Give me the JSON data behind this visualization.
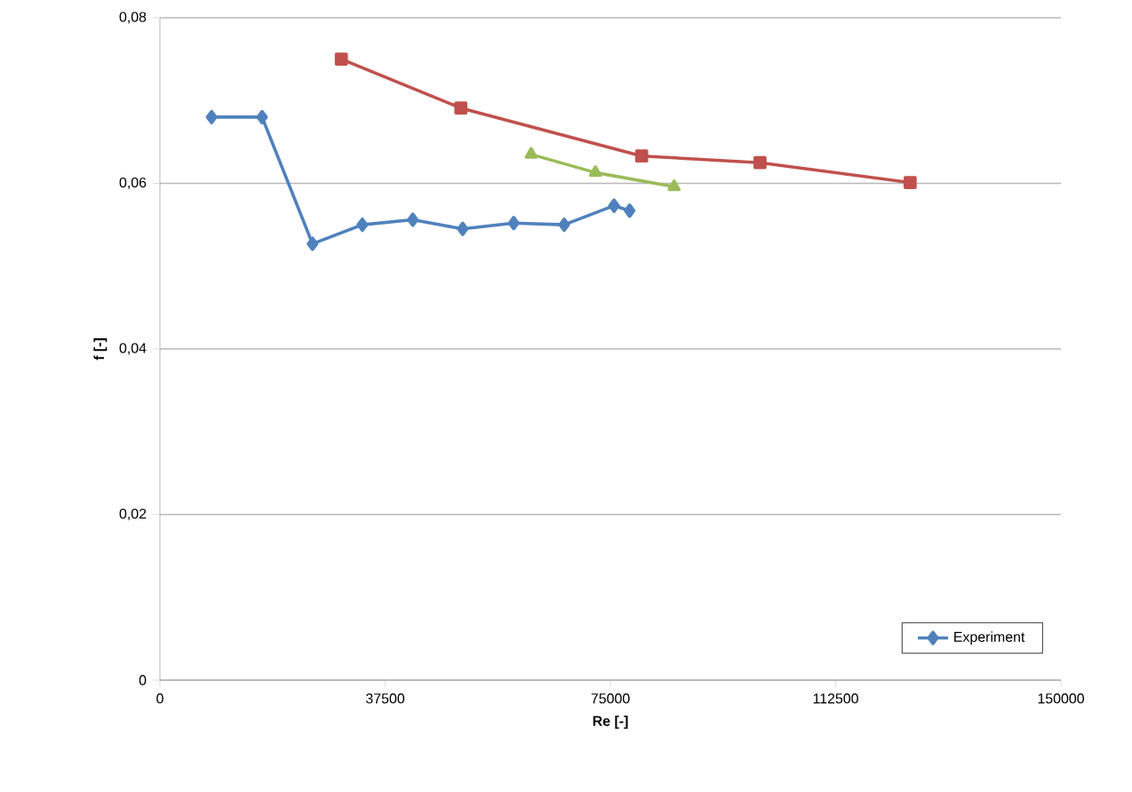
{
  "chart_data": {
    "type": "line",
    "xlabel": "Re [-]",
    "ylabel": "f [-]",
    "xlim": [
      0,
      150000
    ],
    "ylim": [
      0,
      0.08
    ],
    "xticks": [
      0,
      37500,
      75000,
      112500,
      150000
    ],
    "yticks": [
      0,
      {
        "value": 0.02,
        "label": "0,02"
      },
      {
        "value": 0.04,
        "label": "0,04"
      },
      {
        "value": 0.06,
        "label": "0,06"
      },
      {
        "value": 0.08,
        "label": "0,08"
      }
    ],
    "grid": "y",
    "legend": "bottom right",
    "series": [
      {
        "name": "Experiment",
        "color": "#4f81bd",
        "marker": "diamond",
        "x": [
          8600,
          17000,
          25400,
          33700,
          42100,
          50400,
          58900,
          67300,
          75600,
          78200
        ],
        "values": [
          0.068,
          0.068,
          0.0527,
          0.055,
          0.0556,
          0.0545,
          0.0552,
          0.055,
          0.0573,
          0.0567
        ]
      },
      {
        "color": "#c0504d",
        "marker": "square",
        "x": [
          30200,
          50100,
          80200,
          99900,
          124900
        ],
        "values": [
          0.075,
          0.0691,
          0.0633,
          0.0625,
          0.0601
        ]
      },
      {
        "color": "#9bbb59",
        "marker": "triangle",
        "x": [
          61800,
          72500,
          85600
        ],
        "values": [
          0.0635,
          0.0613,
          0.0596
        ]
      }
    ]
  }
}
